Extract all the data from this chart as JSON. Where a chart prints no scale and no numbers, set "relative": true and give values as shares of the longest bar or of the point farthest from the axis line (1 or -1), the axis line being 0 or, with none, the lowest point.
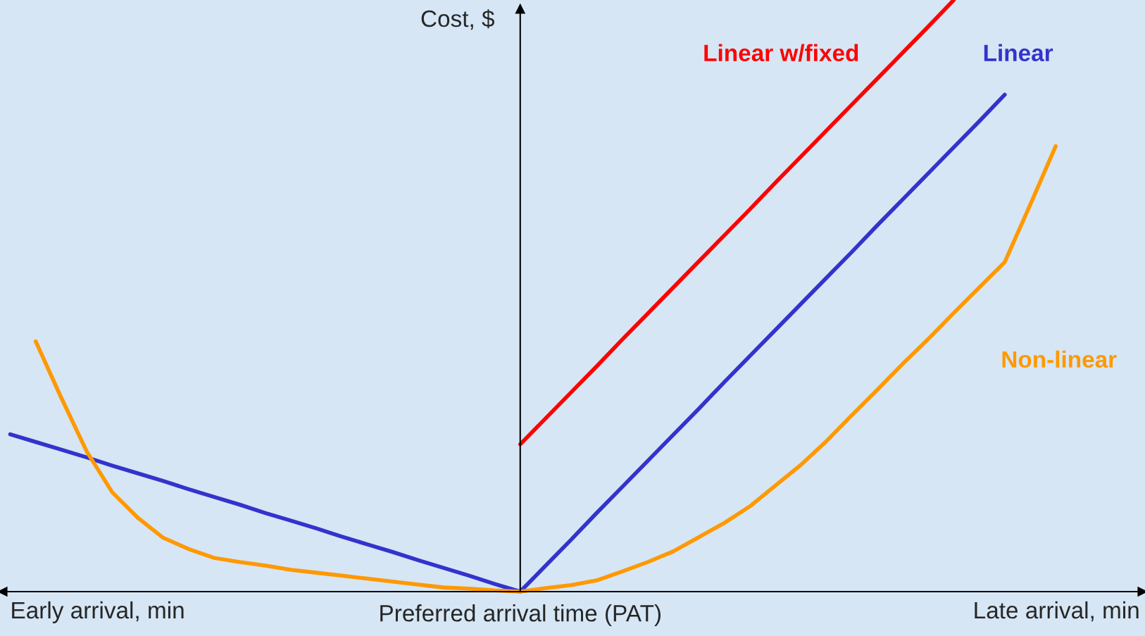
{
  "chart_data": {
    "type": "line",
    "relative": true,
    "ylabel": "Cost, $",
    "xlabel": "Preferred arrival time (PAT)",
    "annotations": [
      "Early arrival, min",
      "Late arrival, min"
    ],
    "legend": false,
    "marker": "none",
    "line_style": "solid",
    "categories": [
      null,
      null,
      null,
      null,
      null,
      null,
      null,
      null,
      null,
      null,
      null,
      null,
      null,
      null,
      null,
      null,
      null,
      null,
      null,
      null,
      null,
      null,
      null,
      null,
      null,
      null,
      null,
      null,
      null,
      null,
      null,
      null,
      null,
      null,
      null,
      null,
      null,
      null,
      null,
      null,
      null,
      null,
      null,
      null,
      null
    ],
    "series": [
      {
        "name": "Linear w/fixed",
        "color": "#ff0000",
        "values": [
          null,
          null,
          null,
          null,
          null,
          null,
          null,
          null,
          null,
          null,
          null,
          null,
          null,
          null,
          null,
          null,
          null,
          null,
          null,
          null,
          0.249,
          0.293,
          0.337,
          0.381,
          0.426,
          0.47,
          0.514,
          0.558,
          0.602,
          0.646,
          0.691,
          0.735,
          0.779,
          0.823,
          0.867,
          0.911,
          0.955,
          1.0,
          null,
          null,
          null,
          null,
          null,
          null,
          null
        ]
      },
      {
        "name": "Linear",
        "color": "#3333cc",
        "values": [
          0.266,
          0.253,
          0.24,
          0.227,
          0.213,
          0.2,
          0.187,
          0.173,
          0.16,
          0.147,
          0.133,
          0.12,
          0.107,
          0.093,
          0.08,
          0.067,
          0.053,
          0.04,
          0.027,
          0.013,
          0,
          0.044,
          0.088,
          0.133,
          0.177,
          0.221,
          0.265,
          0.309,
          0.354,
          0.398,
          0.442,
          0.486,
          0.53,
          0.574,
          0.619,
          0.663,
          0.707,
          0.751,
          0.795,
          0.84,
          null,
          null,
          null,
          null,
          null
        ]
      },
      {
        "name": "Non-linear",
        "color": "#ff9900",
        "values": [
          null,
          0.423,
          0.328,
          0.237,
          0.168,
          0.125,
          0.091,
          0.072,
          0.057,
          0.05,
          0.044,
          0.037,
          0.032,
          0.027,
          0.022,
          0.017,
          0.012,
          0.007,
          0.005,
          0.002,
          0,
          0.006,
          0.011,
          0.019,
          0.034,
          0.05,
          0.068,
          0.092,
          0.116,
          0.144,
          0.179,
          0.214,
          0.254,
          0.298,
          0.341,
          0.385,
          0.427,
          0.471,
          0.514,
          0.557,
          0.654,
          0.753,
          null,
          null,
          null
        ]
      }
    ]
  }
}
